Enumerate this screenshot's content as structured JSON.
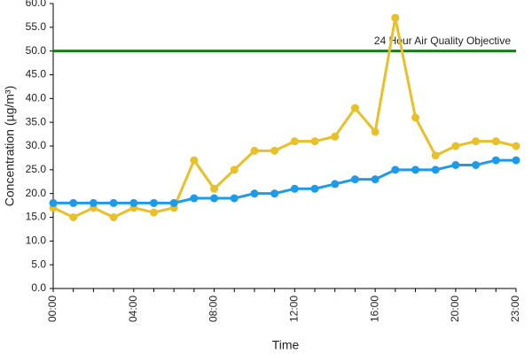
{
  "chart_data": {
    "type": "line",
    "x_label": "Time",
    "y_label": "Concentration (µg/m³)",
    "categories": [
      "00:00",
      null,
      null,
      null,
      "04:00",
      null,
      null,
      null,
      "08:00",
      null,
      null,
      null,
      "12:00",
      null,
      null,
      null,
      "16:00",
      null,
      null,
      null,
      "20:00",
      null,
      null,
      "23:00"
    ],
    "series": [
      {
        "color": "#e8c02a",
        "values": [
          17,
          15,
          17,
          15,
          17,
          16,
          17,
          27,
          21,
          25,
          29,
          29,
          31,
          31,
          32,
          38,
          33,
          57,
          36,
          28,
          30,
          31,
          31,
          30
        ]
      },
      {
        "color": "#1e9be8",
        "values": [
          18,
          18,
          18,
          18,
          18,
          18,
          18,
          19,
          19,
          19,
          20,
          20,
          21,
          21,
          22,
          23,
          23,
          25,
          25,
          25,
          26,
          26,
          27,
          27
        ]
      }
    ],
    "reference_line": {
      "value": 50,
      "label": "24 Hour Air Quality Objective",
      "color": "#1a7a1a"
    },
    "ylim": [
      0,
      60
    ],
    "yticks": [
      {
        "value": 0,
        "label": "0.0"
      },
      {
        "value": 5,
        "label": "5.0"
      },
      {
        "value": 10,
        "label": "10.0"
      },
      {
        "value": 15,
        "label": "15.0"
      },
      {
        "value": 20,
        "label": "20.0"
      },
      {
        "value": 25,
        "label": "25.0"
      },
      {
        "value": 30,
        "label": "30.0"
      },
      {
        "value": 35,
        "label": "35.0"
      },
      {
        "value": 40,
        "label": "40.0"
      },
      {
        "value": 45,
        "label": "45.0"
      },
      {
        "value": 50,
        "label": "50.0"
      },
      {
        "value": 55,
        "label": "55.0"
      },
      {
        "value": 60,
        "label": "60.0"
      }
    ],
    "grid": false
  }
}
